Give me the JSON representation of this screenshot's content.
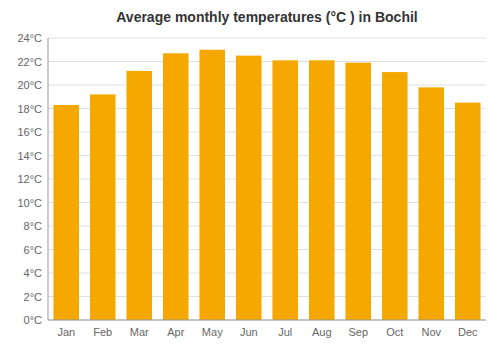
{
  "chart_data": {
    "type": "bar",
    "title": "Average monthly temperatures (°C ) in Bochil",
    "categories": [
      "Jan",
      "Feb",
      "Mar",
      "Apr",
      "May",
      "Jun",
      "Jul",
      "Aug",
      "Sep",
      "Oct",
      "Nov",
      "Dec"
    ],
    "values": [
      18.3,
      19.2,
      21.2,
      22.7,
      23.0,
      22.5,
      22.1,
      22.1,
      21.9,
      21.1,
      19.8,
      18.5
    ],
    "color": "#F5A800",
    "ylim": [
      0,
      24
    ],
    "yticks": [
      {
        "value": 0,
        "label": "0°C"
      },
      {
        "value": 2,
        "label": "2°C"
      },
      {
        "value": 4,
        "label": "4°C"
      },
      {
        "value": 6,
        "label": "6°C"
      },
      {
        "value": 8,
        "label": "8°C"
      },
      {
        "value": 10,
        "label": "10°C"
      },
      {
        "value": 12,
        "label": "12°C"
      },
      {
        "value": 14,
        "label": "14°C"
      },
      {
        "value": 16,
        "label": "16°C"
      },
      {
        "value": 18,
        "label": "18°C"
      },
      {
        "value": 20,
        "label": "20°C"
      },
      {
        "value": 22,
        "label": "22°C"
      },
      {
        "value": 24,
        "label": "24°C"
      }
    ],
    "grid": true
  }
}
